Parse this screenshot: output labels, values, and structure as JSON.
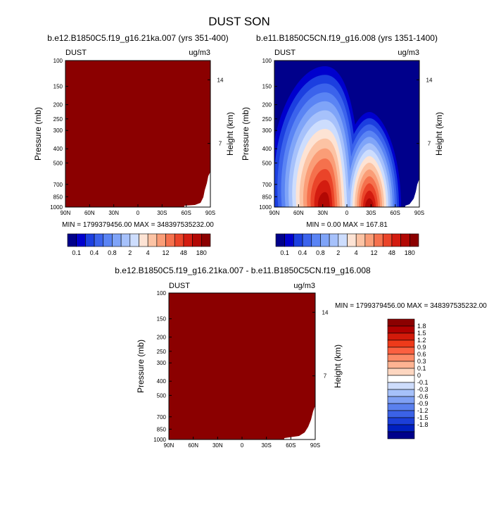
{
  "page": {
    "title": "DUST SON"
  },
  "colors": {
    "saturated_red": "#8b0000",
    "background": "#ffffff",
    "palette_main": [
      "#00008b",
      "#0000cd",
      "#1c3fe0",
      "#3b63ec",
      "#5a84f4",
      "#7fa4f8",
      "#a6c1fb",
      "#cdddfd",
      "#fde3d4",
      "#fcc3a4",
      "#fa9d77",
      "#f5714d",
      "#ea4429",
      "#d31c10",
      "#b20804",
      "#8b0000"
    ],
    "palette_diff": [
      "#8b0000",
      "#b00000",
      "#d21a0a",
      "#ee3a1a",
      "#fb6040",
      "#fc8a66",
      "#fdb392",
      "#fdd6c0",
      "#ffffff",
      "#cddcfb",
      "#a6c1fa",
      "#7fa0f4",
      "#5a80ee",
      "#3b62e6",
      "#1c3fd8",
      "#0020c0",
      "#00008b"
    ]
  },
  "chart_data": [
    {
      "id": "panel-1",
      "type": "heatmap",
      "title": "b.e12.B1850C5.f19_g16.21ka.007 (yrs 351-400)",
      "left_label": "DUST",
      "right_label": "ug/m3",
      "ylabel": "Pressure (mb)",
      "ylabel_right": "Height (km)",
      "x_ticks": [
        "90N",
        "60N",
        "30N",
        "0",
        "30S",
        "60S",
        "90S"
      ],
      "y_ticks": [
        "100",
        "150",
        "200",
        "250",
        "300",
        "400",
        "500",
        "700",
        "850",
        "1000"
      ],
      "y_right_ticks": [
        "14",
        "7"
      ],
      "stats": "MIN = 1799379456.00  MAX = 348397535232.00",
      "field": "saturated (all values above max contour level)"
    },
    {
      "id": "panel-2",
      "type": "heatmap",
      "title": "b.e11.B1850C5CN.f19_g16.008 (yrs 1351-1400)",
      "left_label": "DUST",
      "right_label": "ug/m3",
      "ylabel": "Pressure (mb)",
      "ylabel_right": "Height (km)",
      "x_ticks": [
        "90N",
        "60N",
        "30N",
        "0",
        "30S",
        "60S",
        "90S"
      ],
      "y_ticks": [
        "100",
        "150",
        "200",
        "250",
        "300",
        "400",
        "500",
        "700",
        "850",
        "1000"
      ],
      "y_right_ticks": [
        "14",
        "7"
      ],
      "stats": "MIN =    0.00  MAX = 167.81",
      "field": "dust plumes near 30N and 30S below 400 mb"
    },
    {
      "id": "panel-3",
      "type": "heatmap",
      "title": "b.e12.B1850C5.f19_g16.21ka.007 - b.e11.B1850C5CN.f19_g16.008",
      "left_label": "DUST",
      "right_label": "ug/m3",
      "ylabel": "Pressure (mb)",
      "ylabel_right": "Height (km)",
      "x_ticks": [
        "90N",
        "60N",
        "30N",
        "0",
        "30S",
        "60S",
        "90S"
      ],
      "y_ticks": [
        "100",
        "150",
        "200",
        "250",
        "300",
        "400",
        "500",
        "700",
        "850",
        "1000"
      ],
      "y_right_ticks": [
        "14",
        "7"
      ],
      "stats": "MIN = 1799379456.00  MAX = 348397535232.00",
      "field": "saturated positive difference"
    }
  ],
  "colorbar_main": {
    "labels": [
      "0.1",
      "0.4",
      "0.8",
      "2",
      "4",
      "12",
      "48",
      "180"
    ],
    "n_boxes": 16
  },
  "colorbar_diff": {
    "labels": [
      "1.8",
      "1.5",
      "1.2",
      "0.9",
      "0.6",
      "0.3",
      "0.1",
      "0",
      "-0.1",
      "-0.3",
      "-0.6",
      "-0.9",
      "-1.2",
      "-1.5",
      "-1.8"
    ],
    "n_boxes": 17
  }
}
